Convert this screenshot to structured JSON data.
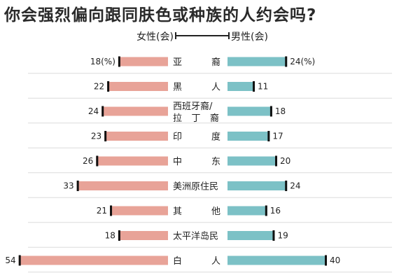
{
  "title": "你会强烈偏向跟同肤色或种族的人约会吗?",
  "legend": {
    "left": "女性(会)",
    "right": "男性(会)"
  },
  "colors": {
    "female": "#e8a398",
    "male": "#7cc1c6",
    "grid": "#dcdcdc",
    "cap": "#111111"
  },
  "chart_data": {
    "type": "bar",
    "title": "你会强烈偏向跟同肤色或种族的人约会吗?",
    "orientation": "horizontal-butterfly",
    "unit": "%",
    "categories": [
      [
        "亚",
        "裔"
      ],
      [
        "黑",
        "人"
      ],
      [
        "西班牙裔/",
        "拉丁裔"
      ],
      [
        "印",
        "度"
      ],
      [
        "中",
        "东"
      ],
      [
        "美洲原住民"
      ],
      [
        "其",
        "他"
      ],
      [
        "太平洋岛民"
      ],
      [
        "白",
        "人"
      ]
    ],
    "series": [
      {
        "name": "女性(会)",
        "side": "left",
        "values": [
          18,
          22,
          24,
          23,
          26,
          33,
          21,
          18,
          54
        ],
        "labels": [
          "18(%)",
          "22",
          "24",
          "23",
          "26",
          "33",
          "21",
          "18",
          "54"
        ]
      },
      {
        "name": "男性(会)",
        "side": "right",
        "values": [
          24,
          11,
          18,
          17,
          20,
          24,
          16,
          19,
          40
        ],
        "labels": [
          "24(%)",
          "11",
          "18",
          "17",
          "20",
          "24",
          "16",
          "19",
          "40"
        ]
      }
    ],
    "grid": true
  }
}
